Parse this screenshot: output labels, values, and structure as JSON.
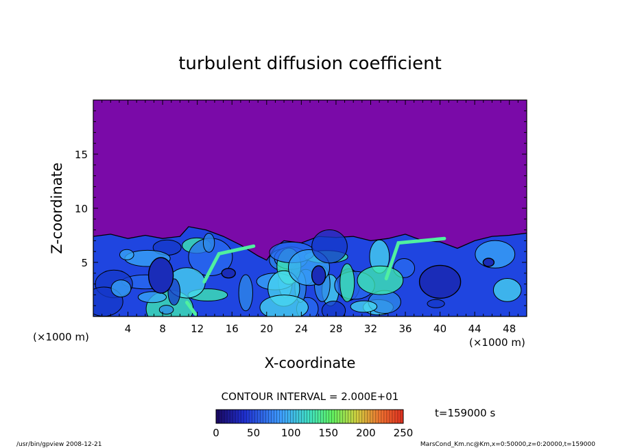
{
  "chart_data": {
    "type": "contour",
    "title": "turbulent diffusion coefficient",
    "xlabel": "X-coordinate",
    "ylabel": "Z-coordinate",
    "x_unit_left": "(×1000 m)",
    "x_unit_right": "(×1000 m)",
    "xlim": [
      0,
      50
    ],
    "ylim": [
      0,
      20
    ],
    "x_ticks": [
      4,
      8,
      12,
      16,
      20,
      24,
      28,
      32,
      36,
      40,
      44,
      48
    ],
    "y_ticks": [
      5,
      10,
      15
    ],
    "contour_interval_label": "CONTOUR INTERVAL = 2.000E+01",
    "time_label": "t=159000 s",
    "colorbar": {
      "min": 0,
      "max": 250,
      "ticks": [
        0,
        50,
        100,
        150,
        200,
        250
      ]
    },
    "background_color": "#7a0aa8",
    "layer_top_profile": [
      [
        0,
        7.4
      ],
      [
        2,
        7.6
      ],
      [
        4,
        7.2
      ],
      [
        6,
        7.5
      ],
      [
        8,
        7.2
      ],
      [
        10,
        7.4
      ],
      [
        11,
        8.3
      ],
      [
        13,
        8.0
      ],
      [
        15,
        7.4
      ],
      [
        17,
        6.6
      ],
      [
        19,
        5.6
      ],
      [
        20,
        5.2
      ],
      [
        21,
        6.4
      ],
      [
        22,
        7.0
      ],
      [
        24,
        6.8
      ],
      [
        26,
        7.4
      ],
      [
        28,
        7.3
      ],
      [
        30,
        7.4
      ],
      [
        32,
        7.0
      ],
      [
        34,
        7.2
      ],
      [
        36,
        7.6
      ],
      [
        38,
        7.0
      ],
      [
        40,
        6.9
      ],
      [
        42,
        6.3
      ],
      [
        44,
        7.0
      ],
      [
        46,
        7.4
      ],
      [
        48,
        7.5
      ],
      [
        50,
        7.7
      ]
    ]
  },
  "footer": {
    "left": "/usr/bin/gpview   2008-12-21",
    "right": "MarsCond_Km.nc@Km,x=0:50000,z=0:20000,t=159000"
  }
}
